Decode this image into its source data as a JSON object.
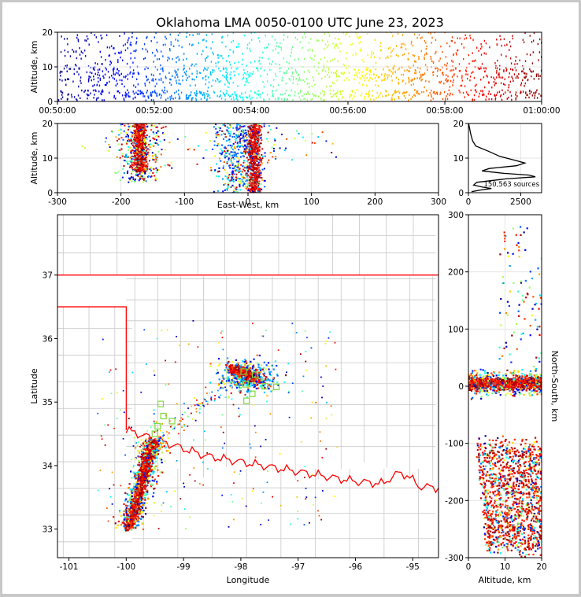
{
  "chart_data": [
    {
      "panel": "time-height",
      "type": "scatter",
      "title": "Oklahoma LMA 0050-0100 UTC June 23, 2023",
      "xlabel": "",
      "ylabel": "Altitude, km",
      "x_ticks": [
        "00:50:00",
        "00:52:00",
        "00:54:00",
        "00:56:00",
        "00:58:00",
        "01:00:00"
      ],
      "xlim": [
        "00:50:00",
        "01:00:00"
      ],
      "ylim": [
        0,
        20
      ],
      "y_ticks": [
        0,
        10,
        20
      ],
      "color_by": "time",
      "colormap": "jet"
    },
    {
      "panel": "east-west vs altitude",
      "type": "scatter",
      "xlabel": "East-West, km",
      "ylabel": "Altitude, km",
      "xlim": [
        -300,
        300
      ],
      "ylim": [
        0,
        20
      ],
      "x_ticks": [
        -300,
        -200,
        -100,
        0,
        100,
        200,
        300
      ],
      "y_ticks": [
        0,
        10,
        20
      ],
      "clusters": [
        {
          "x_range": [
            -195,
            -140
          ],
          "alt_range": [
            4,
            20
          ]
        },
        {
          "x_range": [
            -60,
            50
          ],
          "alt_range": [
            0,
            20
          ]
        }
      ]
    },
    {
      "panel": "altitude histogram",
      "type": "line",
      "xlabel": "",
      "ylabel": "",
      "xlim": [
        0,
        3500
      ],
      "ylim": [
        0,
        20
      ],
      "x_ticks": [
        0,
        2500
      ],
      "y_ticks": [
        0,
        10,
        20
      ],
      "annotation": "150,563 sources",
      "curve": [
        {
          "alt": 0.3,
          "count": 150
        },
        {
          "alt": 0.8,
          "count": 600
        },
        {
          "alt": 1.2,
          "count": 1100
        },
        {
          "alt": 1.6,
          "count": 700
        },
        {
          "alt": 2.2,
          "count": 250
        },
        {
          "alt": 3.0,
          "count": 400
        },
        {
          "alt": 4.0,
          "count": 1800
        },
        {
          "alt": 4.6,
          "count": 3200
        },
        {
          "alt": 5.1,
          "count": 2900
        },
        {
          "alt": 5.6,
          "count": 1700
        },
        {
          "alt": 6.3,
          "count": 650
        },
        {
          "alt": 7.0,
          "count": 1000
        },
        {
          "alt": 7.8,
          "count": 2300
        },
        {
          "alt": 8.6,
          "count": 2700
        },
        {
          "alt": 9.4,
          "count": 2200
        },
        {
          "alt": 10.5,
          "count": 1500
        },
        {
          "alt": 12.0,
          "count": 950
        },
        {
          "alt": 13.5,
          "count": 350
        },
        {
          "alt": 15.0,
          "count": 200
        },
        {
          "alt": 17.0,
          "count": 110
        },
        {
          "alt": 19.0,
          "count": 40
        },
        {
          "alt": 20.0,
          "count": 10
        }
      ]
    },
    {
      "panel": "plan view",
      "type": "scatter",
      "xlabel": "Longitude",
      "ylabel": "Latitude",
      "xlim": [
        -101.2,
        -94.55
      ],
      "ylim": [
        32.55,
        37.95
      ],
      "x_ticks": [
        -101,
        -100,
        -99,
        -98,
        -97,
        -96,
        -95
      ],
      "y_ticks": [
        33,
        34,
        35,
        36,
        37
      ],
      "station_marker_color": "#7fd83a",
      "stations": [
        {
          "lon": -97.95,
          "lat": 35.48
        },
        {
          "lon": -97.75,
          "lat": 35.43
        },
        {
          "lon": -97.92,
          "lat": 35.28
        },
        {
          "lon": -97.58,
          "lat": 35.25
        },
        {
          "lon": -97.38,
          "lat": 35.24
        },
        {
          "lon": -97.8,
          "lat": 35.13
        },
        {
          "lon": -97.9,
          "lat": 35.02
        },
        {
          "lon": -99.35,
          "lat": 34.78
        },
        {
          "lon": -99.2,
          "lat": 34.7
        },
        {
          "lon": -99.45,
          "lat": 34.62
        },
        {
          "lon": -99.4,
          "lat": 34.97
        },
        {
          "lon": -99.5,
          "lat": 34.5
        }
      ]
    },
    {
      "panel": "altitude vs north-south",
      "type": "scatter",
      "xlabel": "Altitude, km",
      "ylabel": "North-South, km",
      "xlim": [
        0,
        20
      ],
      "ylim": [
        -300,
        300
      ],
      "x_ticks": [
        0,
        10,
        20
      ],
      "y_ticks": [
        -300,
        -200,
        -100,
        0,
        100,
        200,
        300
      ]
    }
  ],
  "colors": {
    "state_boundary": "#ff0000",
    "county_lines": "#c8c8c8",
    "histogram_line": "#000000",
    "figure_border": "#c8c8c8"
  },
  "colormap": [
    "#00008f",
    "#0000ff",
    "#0080ff",
    "#00ffff",
    "#80ff80",
    "#ffff00",
    "#ff8000",
    "#ff0000",
    "#800000"
  ]
}
